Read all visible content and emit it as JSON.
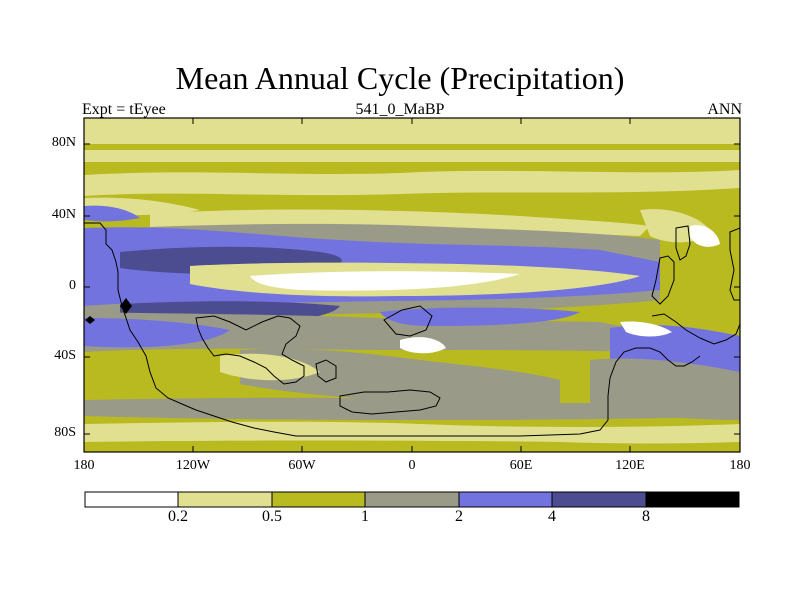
{
  "figure": {
    "title": "Mean Annual Cycle (Precipitation)",
    "left_label": "Expt = tEyee",
    "center_label": "541_0_MaBP",
    "right_label": "ANN"
  },
  "map": {
    "variable": "Precipitation",
    "projection": "cylindrical equidistant",
    "lon_range": [
      -180,
      180
    ],
    "lat_range": [
      -90,
      90
    ],
    "x_ticks": [
      "180",
      "120W",
      "60W",
      "0",
      "60E",
      "120E",
      "180"
    ],
    "y_ticks": [
      "80N",
      "40N",
      "0",
      "40S",
      "80S"
    ]
  },
  "colorbar": {
    "levels": [
      "0.2",
      "0.5",
      "1",
      "2",
      "4",
      "8"
    ],
    "colors": [
      "#ffffff",
      "#e0e090",
      "#b9b920",
      "#9a9a88",
      "#7373e0",
      "#4c4c90",
      "#000000"
    ]
  }
}
